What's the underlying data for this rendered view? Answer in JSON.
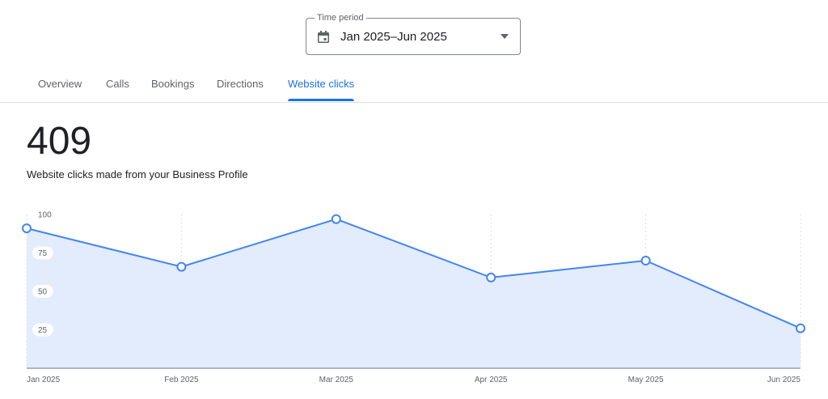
{
  "time_period": {
    "legend": "Time period",
    "value": "Jan 2025–Jun 2025",
    "icons": [
      "calendar-icon",
      "dropdown-arrow-icon"
    ]
  },
  "tabs": [
    {
      "label": "Overview",
      "active": false
    },
    {
      "label": "Calls",
      "active": false
    },
    {
      "label": "Bookings",
      "active": false
    },
    {
      "label": "Directions",
      "active": false
    },
    {
      "label": "Website clicks",
      "active": true
    }
  ],
  "metric": {
    "value": "409",
    "caption": "Website clicks made from your Business Profile"
  },
  "colors": {
    "accent": "#1a73e8",
    "line": "#4285f4",
    "area": "#e3ecfc"
  },
  "chart_data": {
    "type": "area",
    "x": [
      "Jan 2025",
      "Feb 2025",
      "Mar 2025",
      "Apr 2025",
      "May 2025",
      "Jun 2025"
    ],
    "values": [
      91,
      66,
      97,
      59,
      70,
      26
    ],
    "y_ticks": [
      "100",
      "75",
      "50",
      "25"
    ],
    "y_tick_values": [
      100,
      75,
      50,
      25
    ],
    "ylim": [
      0,
      100
    ],
    "grid": "vertical-dashed"
  }
}
